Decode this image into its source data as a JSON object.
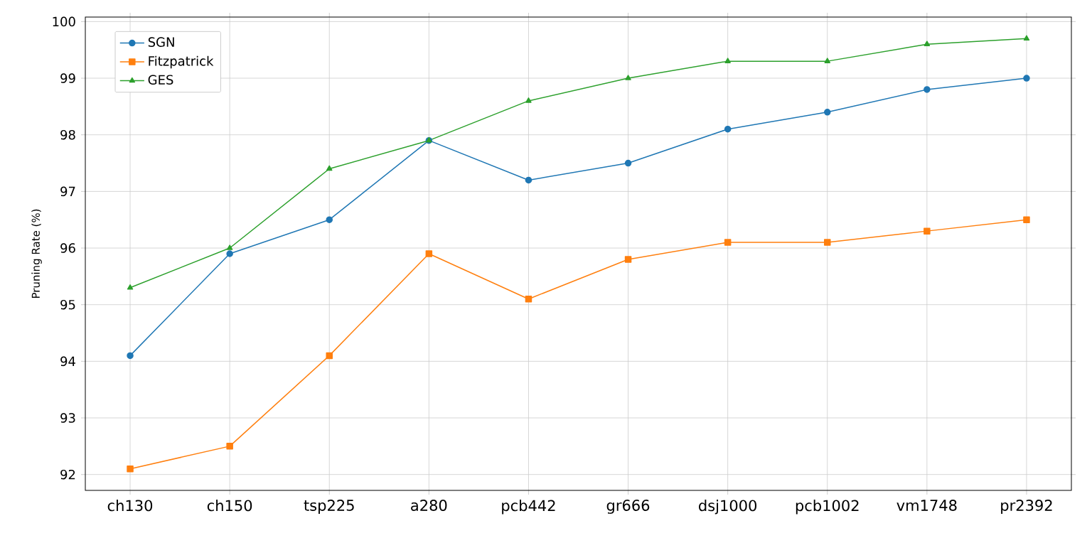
{
  "chart_data": {
    "type": "line",
    "ylabel": "Pruning Rate (%)",
    "categories": [
      "ch130",
      "ch150",
      "tsp225",
      "a280",
      "pcb442",
      "gr666",
      "dsj1000",
      "pcb1002",
      "vm1748",
      "pr2392"
    ],
    "series": [
      {
        "name": "SGN",
        "color": "#1f77b4",
        "marker": "circle",
        "values": [
          94.1,
          95.9,
          96.5,
          97.9,
          97.2,
          97.5,
          98.1,
          98.4,
          98.8,
          99.0
        ]
      },
      {
        "name": "Fitzpatrick",
        "color": "#ff7f0e",
        "marker": "square",
        "values": [
          92.1,
          92.5,
          94.1,
          95.9,
          95.1,
          95.8,
          96.1,
          96.1,
          96.3,
          96.5
        ]
      },
      {
        "name": "GES",
        "color": "#2ca02c",
        "marker": "triangle",
        "values": [
          95.3,
          96.0,
          97.4,
          97.9,
          98.6,
          99.0,
          99.3,
          99.3,
          99.6,
          99.7
        ]
      }
    ],
    "ylim": [
      91.72,
      100.08
    ],
    "yticks": [
      92,
      93,
      94,
      95,
      96,
      97,
      98,
      99,
      100
    ],
    "grid": true,
    "legend": "top left",
    "line_style": "solid"
  }
}
